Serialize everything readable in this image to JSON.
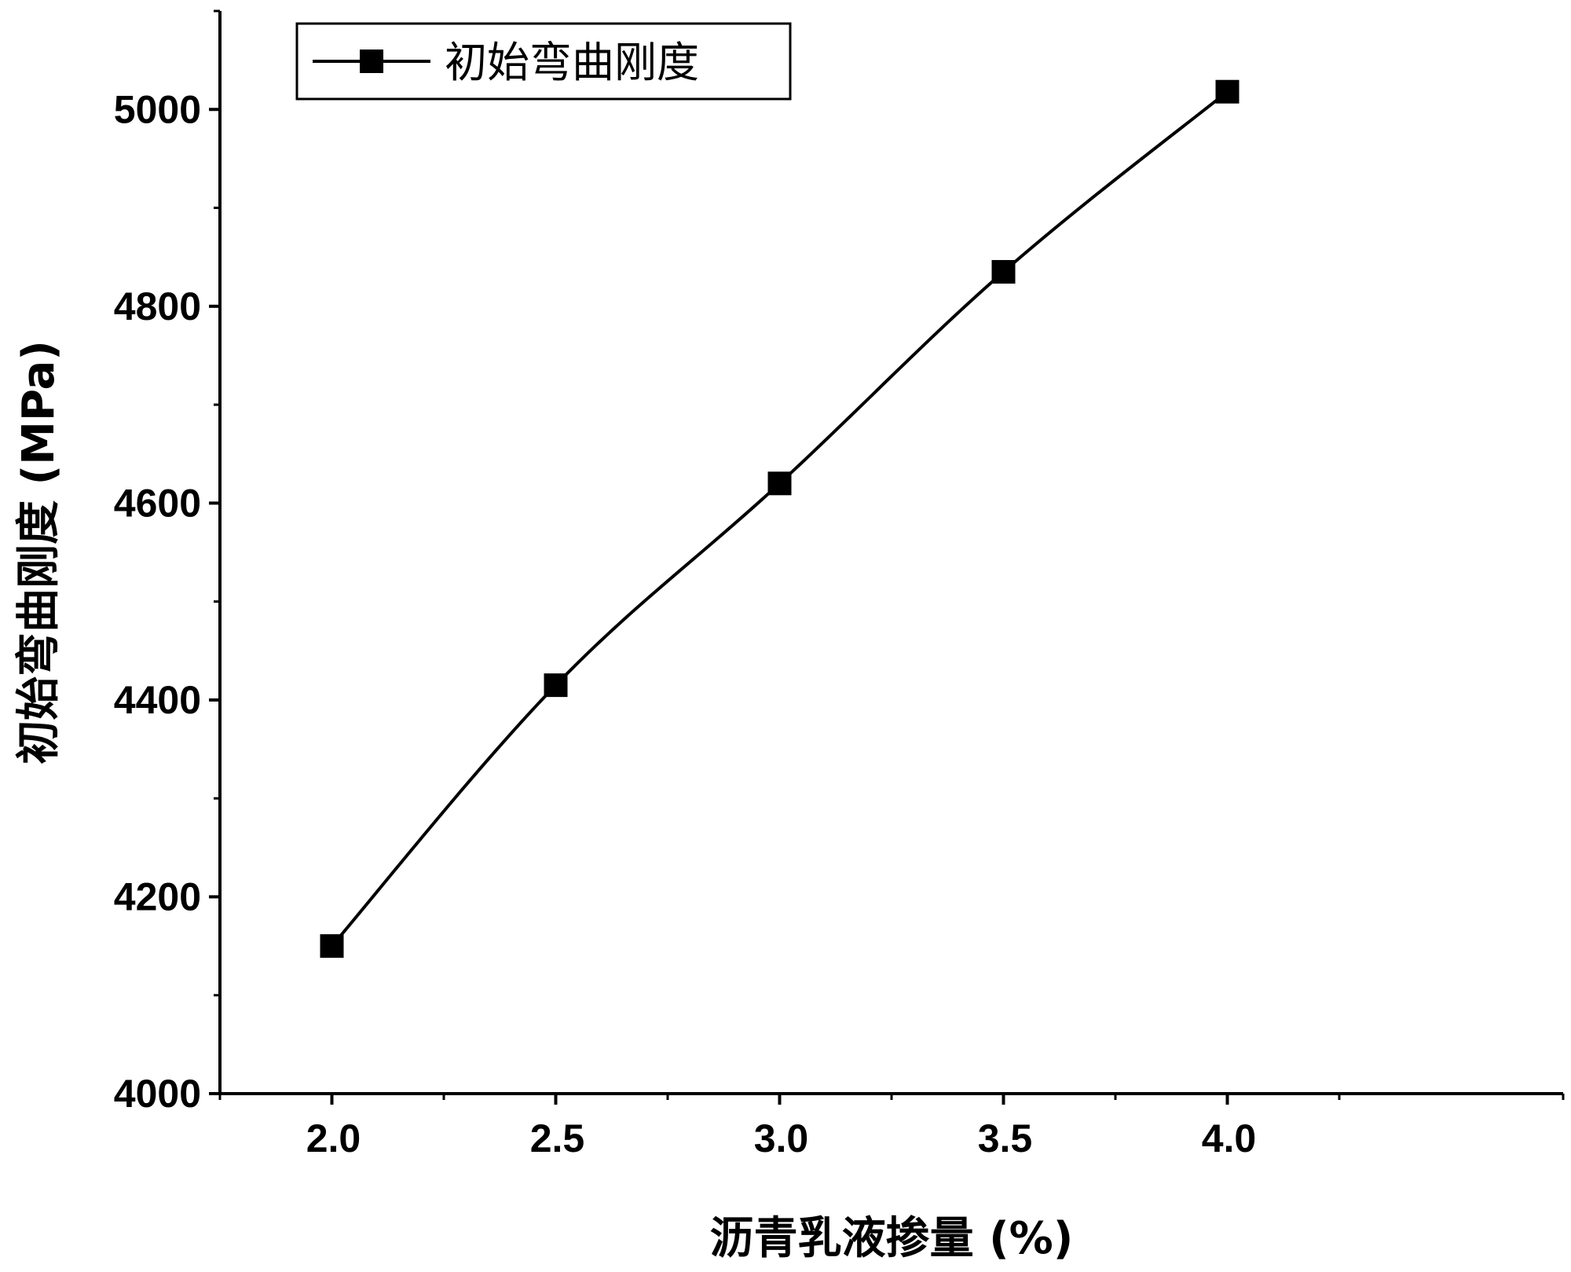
{
  "chart_data": {
    "type": "line",
    "x": [
      2.0,
      2.5,
      3.0,
      3.5,
      4.0
    ],
    "series": [
      {
        "name": "初始弯曲刚度",
        "values": [
          4150,
          4415,
          4620,
          4835,
          5018
        ],
        "marker": "square",
        "color": "#000000"
      }
    ],
    "xlabel": "沥青乳液掺量 (%)",
    "ylabel": "初始弯曲刚度 (MPa)",
    "xlim": [
      1.75,
      4.75
    ],
    "ylim": [
      4000,
      5100
    ],
    "x_ticks": [
      {
        "value": 2.0,
        "label": "2.0"
      },
      {
        "value": 2.5,
        "label": "2.5"
      },
      {
        "value": 3.0,
        "label": "3.0"
      },
      {
        "value": 3.5,
        "label": "3.5"
      },
      {
        "value": 4.0,
        "label": "4.0"
      }
    ],
    "y_ticks": [
      {
        "value": 4000,
        "label": "4000"
      },
      {
        "value": 4200,
        "label": "4200"
      },
      {
        "value": 4400,
        "label": "4400"
      },
      {
        "value": 4600,
        "label": "4600"
      },
      {
        "value": 4800,
        "label": "4800"
      },
      {
        "value": 5000,
        "label": "5000"
      }
    ],
    "grid": false,
    "legend_position": "top-left",
    "smooth": true
  }
}
